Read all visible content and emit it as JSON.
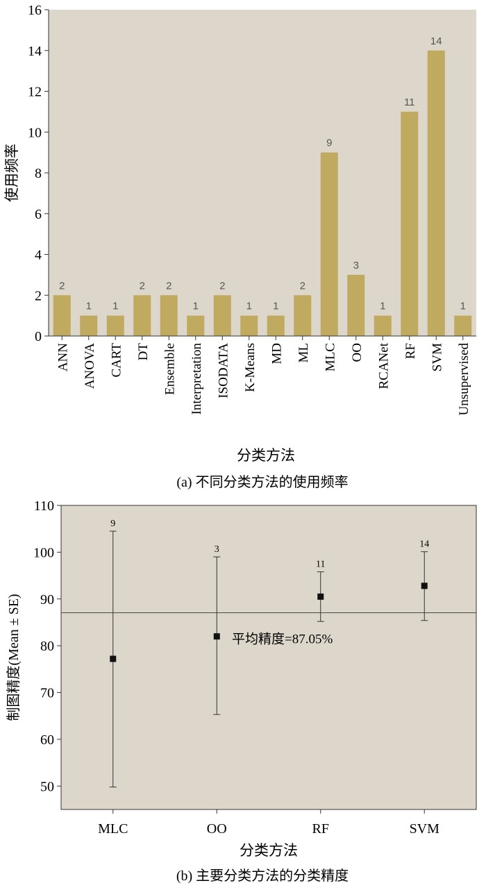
{
  "chart_data": [
    {
      "type": "bar",
      "panel": "a",
      "caption": "(a) 不同分类方法的使用频率",
      "xlabel": "分类方法",
      "ylabel": "使用频率",
      "ylim": [
        0,
        16
      ],
      "yticks": [
        0,
        2,
        4,
        6,
        8,
        10,
        12,
        14,
        16
      ],
      "categories": [
        "ANN",
        "ANOVA",
        "CART",
        "DT",
        "Ensemble",
        "Interpretation",
        "ISODATA",
        "K-Means",
        "MD",
        "ML",
        "MLC",
        "OO",
        "RCANet",
        "RF",
        "SVM",
        "Unsupervised"
      ],
      "values": [
        2,
        1,
        1,
        2,
        2,
        1,
        2,
        1,
        1,
        2,
        9,
        3,
        1,
        11,
        14,
        1
      ],
      "bar_color": "#bfaa60",
      "background": "#ddd6cb",
      "grid": false
    },
    {
      "type": "scatter",
      "panel": "b",
      "caption": "(b) 主要分类方法的分类精度",
      "xlabel": "分类方法",
      "ylabel": "制图精度(Mean ± SE)",
      "ylim": [
        45,
        110
      ],
      "yticks": [
        50,
        60,
        70,
        80,
        90,
        100,
        110
      ],
      "categories": [
        "MLC",
        "OO",
        "RF",
        "SVM"
      ],
      "mean": [
        77.2,
        82.0,
        90.5,
        92.8
      ],
      "err_low": [
        49.8,
        65.3,
        85.2,
        85.4
      ],
      "err_high": [
        104.5,
        99.0,
        95.8,
        100.1
      ],
      "counts": [
        "9",
        "3",
        "11",
        "14"
      ],
      "reference_line": {
        "value": 87.05,
        "label": "平均精度=87.05%"
      },
      "marker_color": "#111111",
      "background": "#ddd6cb",
      "grid": false
    }
  ]
}
